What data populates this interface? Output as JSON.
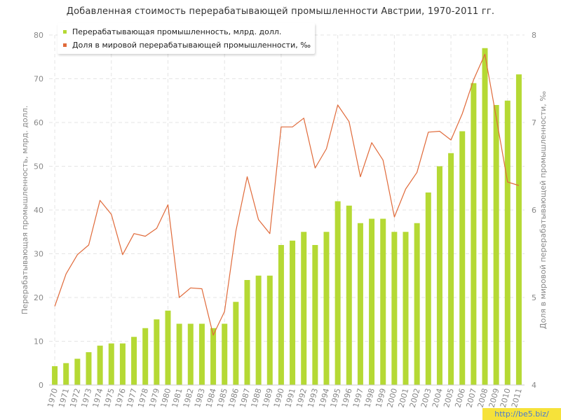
{
  "chart_data": {
    "type": "bar+line",
    "title": "Добавленная стоимость перерабатывающей промышленности Австрии, 1970-2011 гг.",
    "ylabel_left": "Перерабатывающая промышленность, млрд. долл.",
    "ylabel_right": "Доля в мировой перерабатывающей промышленности, ‰",
    "yticks_left": [
      "0",
      "10",
      "20",
      "30",
      "40",
      "50",
      "60",
      "70",
      "80"
    ],
    "yticks_right": [
      "4",
      "5",
      "6",
      "7",
      "8"
    ],
    "ylim_left": [
      0,
      80
    ],
    "ylim_right": [
      4,
      8
    ],
    "categories": [
      "1970",
      "1971",
      "1972",
      "1973",
      "1974",
      "1975",
      "1976",
      "1977",
      "1978",
      "1979",
      "1980",
      "1981",
      "1982",
      "1983",
      "1984",
      "1985",
      "1986",
      "1987",
      "1988",
      "1989",
      "1990",
      "1991",
      "1992",
      "1993",
      "1994",
      "1995",
      "1996",
      "1997",
      "1998",
      "1999",
      "2000",
      "2001",
      "2002",
      "2003",
      "2004",
      "2005",
      "2006",
      "2007",
      "2008",
      "2009",
      "2010",
      "2011"
    ],
    "series": [
      {
        "name": "Перерабатывающая промышленность, млрд. долл.",
        "type": "bar",
        "axis": "left",
        "color": "#b5d934",
        "values": [
          4.3,
          5,
          6,
          7.5,
          9,
          9.5,
          9.5,
          11,
          13,
          15,
          17,
          14,
          14,
          14,
          13,
          14,
          19,
          24,
          25,
          25,
          32,
          33,
          35,
          32,
          35,
          42,
          41,
          37,
          38,
          38,
          35,
          35,
          37,
          44,
          50,
          53,
          58,
          69,
          77,
          64,
          65,
          71
        ]
      },
      {
        "name": "Доля в мировой перерабатывающей промышленности, ‰",
        "type": "line",
        "axis": "right",
        "color": "#e06a3a",
        "values": [
          4.9,
          5.27,
          5.49,
          5.6,
          6.11,
          5.95,
          5.49,
          5.73,
          5.7,
          5.79,
          6.06,
          5,
          5.11,
          5.1,
          4.57,
          4.84,
          5.76,
          6.38,
          5.89,
          5.73,
          6.95,
          6.95,
          7.05,
          6.48,
          6.7,
          7.2,
          7.01,
          6.38,
          6.77,
          6.57,
          5.92,
          6.24,
          6.43,
          6.89,
          6.9,
          6.8,
          7.1,
          7.49,
          7.78,
          7.06,
          6.32,
          6.28
        ]
      }
    ],
    "grid": true,
    "legend_position": "top-left"
  },
  "watermark": "http://be5.biz/"
}
